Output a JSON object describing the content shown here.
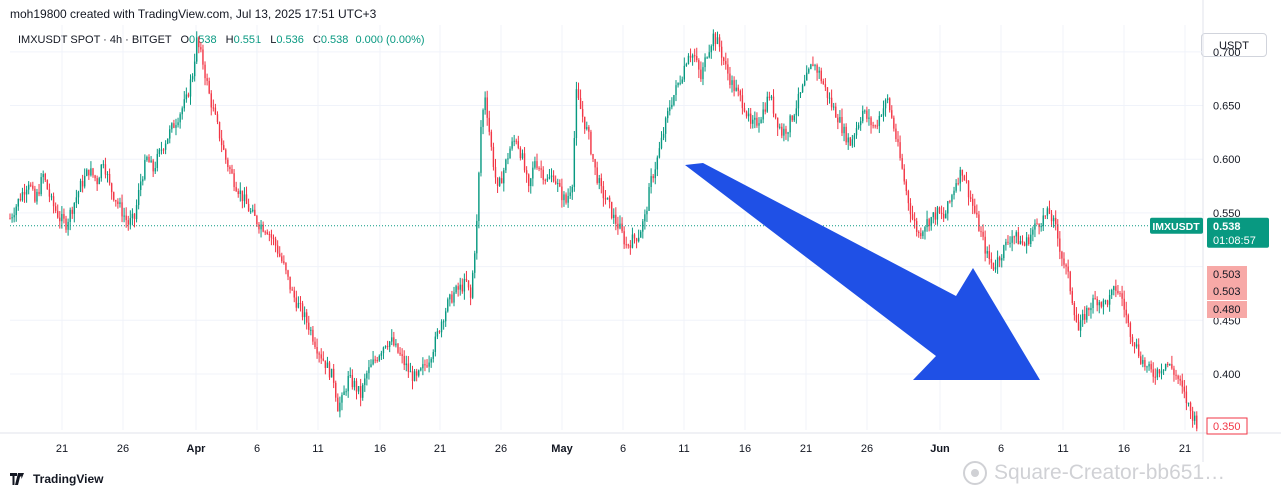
{
  "header": {
    "creator_text": "moh19800 created with TradingView.com, Jul 13, 2025 17:51 UTC+3"
  },
  "legend": {
    "symbol": "IMXUSDT SPOT · 4h · BITGET",
    "open_label": "O",
    "open": "0.538",
    "high_label": "H",
    "high": "0.551",
    "low_label": "L",
    "low": "0.536",
    "close_label": "C",
    "close": "0.538",
    "change": "0.000 (0.00%)"
  },
  "currency_button": "USDT",
  "price_tag": {
    "symbol": "IMXUSDT",
    "price": "0.538",
    "countdown": "01:08:57"
  },
  "level_tags": [
    "0.503",
    "0.503",
    "0.480",
    "0.350"
  ],
  "brand": "TradingView",
  "watermark": "Square-Creator-bb651…",
  "colors": {
    "up": "#089981",
    "down": "#f23645",
    "arrow": "#1f50e6",
    "tag_red": "#f7a9a7"
  },
  "chart_data": {
    "type": "candlestick",
    "symbol": "IMXUSDT",
    "timeframe": "4h",
    "x_ticks": [
      "21",
      "26",
      "Apr",
      "6",
      "11",
      "16",
      "21",
      "26",
      "May",
      "6",
      "11",
      "16",
      "21",
      "26",
      "Jun",
      "6",
      "11",
      "16",
      "21"
    ],
    "y_ticks": [
      0.7,
      0.65,
      0.6,
      0.55,
      0.45,
      0.4
    ],
    "y_tick_labels": [
      "0.700",
      "0.650",
      "0.600",
      "0.550",
      "0.450",
      "0.400"
    ],
    "ylim": [
      0.345,
      0.725
    ],
    "current_price": 0.538,
    "grid": true,
    "annotation": "downward arrow",
    "close_path": [
      [
        0,
        0.545
      ],
      [
        5,
        0.565
      ],
      [
        9,
        0.58
      ],
      [
        12,
        0.56
      ],
      [
        16,
        0.585
      ],
      [
        20,
        0.56
      ],
      [
        24,
        0.545
      ],
      [
        27,
        0.54
      ],
      [
        30,
        0.555
      ],
      [
        34,
        0.575
      ],
      [
        38,
        0.59
      ],
      [
        42,
        0.58
      ],
      [
        45,
        0.6
      ],
      [
        48,
        0.575
      ],
      [
        53,
        0.555
      ],
      [
        57,
        0.54
      ],
      [
        60,
        0.545
      ],
      [
        63,
        0.58
      ],
      [
        66,
        0.6
      ],
      [
        69,
        0.59
      ],
      [
        73,
        0.61
      ],
      [
        77,
        0.625
      ],
      [
        81,
        0.64
      ],
      [
        85,
        0.655
      ],
      [
        88,
        0.68
      ],
      [
        90,
        0.71
      ],
      [
        93,
        0.69
      ],
      [
        96,
        0.66
      ],
      [
        100,
        0.63
      ],
      [
        104,
        0.6
      ],
      [
        108,
        0.58
      ],
      [
        112,
        0.565
      ],
      [
        116,
        0.55
      ],
      [
        120,
        0.54
      ],
      [
        124,
        0.535
      ],
      [
        128,
        0.52
      ],
      [
        132,
        0.5
      ],
      [
        136,
        0.475
      ],
      [
        140,
        0.46
      ],
      [
        144,
        0.445
      ],
      [
        148,
        0.425
      ],
      [
        152,
        0.41
      ],
      [
        156,
        0.395
      ],
      [
        158,
        0.37
      ],
      [
        160,
        0.375
      ],
      [
        163,
        0.395
      ],
      [
        166,
        0.39
      ],
      [
        169,
        0.38
      ],
      [
        172,
        0.4
      ],
      [
        175,
        0.41
      ],
      [
        178,
        0.42
      ],
      [
        181,
        0.43
      ],
      [
        184,
        0.43
      ],
      [
        187,
        0.42
      ],
      [
        190,
        0.41
      ],
      [
        193,
        0.4
      ],
      [
        196,
        0.395
      ],
      [
        199,
        0.405
      ],
      [
        202,
        0.415
      ],
      [
        205,
        0.43
      ],
      [
        208,
        0.45
      ],
      [
        211,
        0.465
      ],
      [
        214,
        0.475
      ],
      [
        217,
        0.48
      ],
      [
        220,
        0.485
      ],
      [
        222,
        0.47
      ],
      [
        225,
        0.54
      ],
      [
        227,
        0.63
      ],
      [
        229,
        0.66
      ],
      [
        232,
        0.61
      ],
      [
        235,
        0.57
      ],
      [
        238,
        0.59
      ],
      [
        241,
        0.61
      ],
      [
        244,
        0.62
      ],
      [
        247,
        0.6
      ],
      [
        250,
        0.57
      ],
      [
        253,
        0.6
      ],
      [
        256,
        0.59
      ],
      [
        259,
        0.58
      ],
      [
        262,
        0.585
      ],
      [
        265,
        0.57
      ],
      [
        268,
        0.56
      ],
      [
        271,
        0.58
      ],
      [
        273,
        0.66
      ],
      [
        276,
        0.64
      ],
      [
        279,
        0.62
      ],
      [
        282,
        0.59
      ],
      [
        285,
        0.57
      ],
      [
        288,
        0.56
      ],
      [
        291,
        0.545
      ],
      [
        294,
        0.535
      ],
      [
        297,
        0.52
      ],
      [
        300,
        0.525
      ],
      [
        303,
        0.53
      ],
      [
        306,
        0.545
      ],
      [
        309,
        0.58
      ],
      [
        312,
        0.6
      ],
      [
        315,
        0.625
      ],
      [
        318,
        0.65
      ],
      [
        321,
        0.665
      ],
      [
        324,
        0.68
      ],
      [
        327,
        0.7
      ],
      [
        330,
        0.695
      ],
      [
        333,
        0.675
      ],
      [
        336,
        0.7
      ],
      [
        339,
        0.715
      ],
      [
        342,
        0.705
      ],
      [
        345,
        0.685
      ],
      [
        348,
        0.67
      ],
      [
        351,
        0.66
      ],
      [
        354,
        0.65
      ],
      [
        357,
        0.63
      ],
      [
        360,
        0.635
      ],
      [
        363,
        0.645
      ],
      [
        366,
        0.66
      ],
      [
        369,
        0.64
      ],
      [
        372,
        0.625
      ],
      [
        375,
        0.63
      ],
      [
        378,
        0.645
      ],
      [
        381,
        0.66
      ],
      [
        384,
        0.675
      ],
      [
        387,
        0.69
      ],
      [
        390,
        0.68
      ],
      [
        393,
        0.665
      ],
      [
        396,
        0.65
      ],
      [
        399,
        0.64
      ],
      [
        402,
        0.625
      ],
      [
        405,
        0.615
      ],
      [
        408,
        0.63
      ],
      [
        411,
        0.645
      ],
      [
        414,
        0.635
      ],
      [
        417,
        0.63
      ],
      [
        420,
        0.645
      ],
      [
        423,
        0.655
      ],
      [
        426,
        0.63
      ],
      [
        429,
        0.6
      ],
      [
        432,
        0.57
      ],
      [
        435,
        0.545
      ],
      [
        438,
        0.53
      ],
      [
        441,
        0.54
      ],
      [
        444,
        0.545
      ],
      [
        447,
        0.55
      ],
      [
        450,
        0.545
      ],
      [
        453,
        0.56
      ],
      [
        456,
        0.58
      ],
      [
        459,
        0.59
      ],
      [
        462,
        0.57
      ],
      [
        465,
        0.55
      ],
      [
        468,
        0.53
      ],
      [
        471,
        0.51
      ],
      [
        474,
        0.5
      ],
      [
        477,
        0.51
      ],
      [
        480,
        0.52
      ],
      [
        483,
        0.53
      ],
      [
        486,
        0.525
      ],
      [
        489,
        0.52
      ],
      [
        492,
        0.53
      ],
      [
        495,
        0.54
      ],
      [
        498,
        0.545
      ],
      [
        501,
        0.55
      ],
      [
        504,
        0.535
      ],
      [
        507,
        0.51
      ],
      [
        510,
        0.49
      ],
      [
        513,
        0.46
      ],
      [
        515,
        0.44
      ],
      [
        518,
        0.455
      ],
      [
        521,
        0.465
      ],
      [
        524,
        0.47
      ],
      [
        527,
        0.465
      ],
      [
        530,
        0.47
      ],
      [
        533,
        0.48
      ],
      [
        536,
        0.47
      ],
      [
        539,
        0.445
      ],
      [
        542,
        0.43
      ],
      [
        545,
        0.415
      ],
      [
        548,
        0.405
      ],
      [
        551,
        0.4
      ],
      [
        554,
        0.405
      ],
      [
        557,
        0.41
      ],
      [
        560,
        0.405
      ],
      [
        563,
        0.395
      ],
      [
        566,
        0.38
      ],
      [
        569,
        0.365
      ],
      [
        572,
        0.355
      ]
    ]
  }
}
